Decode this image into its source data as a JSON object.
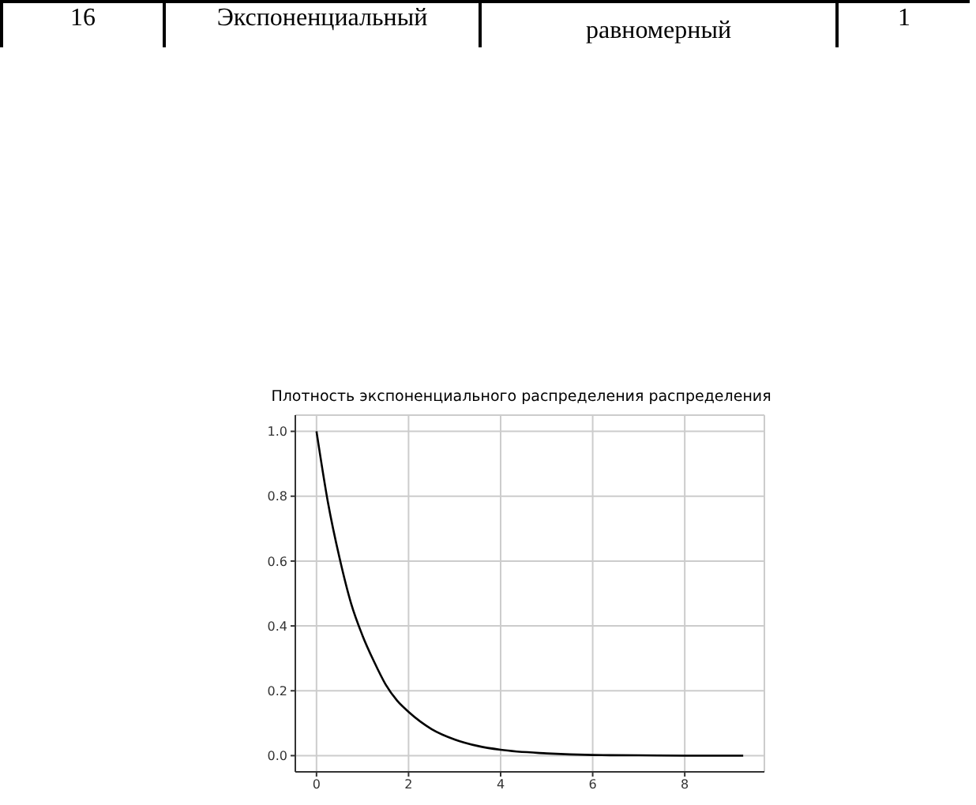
{
  "chart_data": {
    "type": "line",
    "title": "Плотность экспоненциального распределения распределения",
    "annotations": [
      "16",
      "Экспоненциальный",
      "равномерный",
      "1"
    ],
    "x": [
      0,
      0.25,
      0.5,
      0.75,
      1,
      1.25,
      1.5,
      1.75,
      2,
      2.5,
      3,
      3.5,
      4,
      5,
      6,
      7,
      8,
      9.27
    ],
    "series": [
      {
        "color": "#000000",
        "values": [
          1,
          0.78,
          0.61,
          0.47,
          0.37,
          0.29,
          0.22,
          0.17,
          0.135,
          0.082,
          0.05,
          0.03,
          0.018,
          0.007,
          0.002,
          0.001,
          0,
          0
        ]
      }
    ],
    "xlim": [
      -0.46,
      9.73
    ],
    "xticks": [
      0,
      2,
      4,
      6,
      8
    ],
    "ylim": [
      -0.05,
      1.05
    ],
    "yticks": [
      {
        "value": 0,
        "label": "0.0"
      },
      {
        "value": 0.2,
        "label": "0.2"
      },
      {
        "value": 0.4,
        "label": "0.4"
      },
      {
        "value": 0.6,
        "label": "0.6"
      },
      {
        "value": 0.8,
        "label": "0.8"
      },
      {
        "value": 1,
        "label": "1.0"
      }
    ],
    "grid": true,
    "marker": "none",
    "line_style": "solid"
  }
}
